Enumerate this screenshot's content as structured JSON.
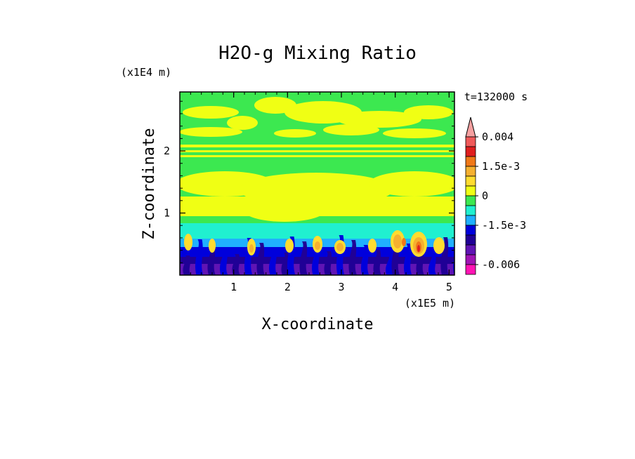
{
  "chart_data": {
    "type": "heatmap",
    "title": "H2O-g Mixing Ratio",
    "xlabel": "X-coordinate",
    "ylabel": "Z-coordinate",
    "x_unit": "(x1E5 m)",
    "y_unit": "(x1E4 m)",
    "time_label": "t=132000 s",
    "xlim": [
      0.0,
      5.1
    ],
    "ylim": [
      0.0,
      2.95
    ],
    "x_ticks": [
      1,
      2,
      3,
      4,
      5
    ],
    "y_ticks": [
      1,
      2
    ],
    "colorbar": {
      "labels": [
        {
          "text": "0.004",
          "value": 0.004
        },
        {
          "text": "1.5e-3",
          "value": 0.0015
        },
        {
          "text": "0",
          "value": 0.0
        },
        {
          "text": "-1.5e-3",
          "value": -0.0015
        },
        {
          "text": "-0.006",
          "value": -0.006
        }
      ],
      "levels": [
        {
          "value": 0.0045,
          "color": "#f5a0a0"
        },
        {
          "value": 0.004,
          "color": "#f05a5a"
        },
        {
          "value": 0.0025,
          "color": "#e01e1e"
        },
        {
          "value": 0.002,
          "color": "#f07818"
        },
        {
          "value": 0.0015,
          "color": "#f5b030"
        },
        {
          "value": 0.001,
          "color": "#ffdc30"
        },
        {
          "value": 0.0005,
          "color": "#f0ff14"
        },
        {
          "value": 0.0,
          "color": "#3ce850"
        },
        {
          "value": -0.0005,
          "color": "#20f0d0"
        },
        {
          "value": -0.001,
          "color": "#20b0ff"
        },
        {
          "value": -0.0015,
          "color": "#0000dc"
        },
        {
          "value": -0.002,
          "color": "#200096"
        },
        {
          "value": -0.004,
          "color": "#6014b4"
        },
        {
          "value": -0.005,
          "color": "#a014b4"
        },
        {
          "value": -0.006,
          "color": "#ff14b4"
        }
      ]
    }
  }
}
